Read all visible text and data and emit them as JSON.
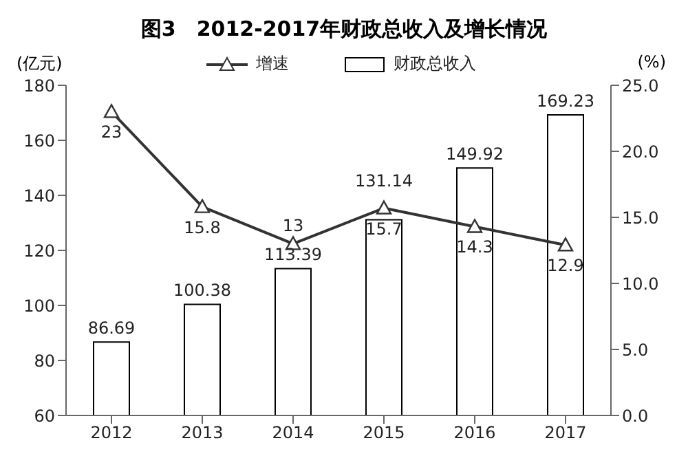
{
  "chart_data": {
    "type": "bar",
    "title": "图3　2012-2017年财政总收入及增长情况",
    "ylabel": "(亿元)",
    "y2label": "(%)",
    "categories": [
      "2012",
      "2013",
      "2014",
      "2015",
      "2016",
      "2017"
    ],
    "series": [
      {
        "name": "财政总收入",
        "color": "#ffffff",
        "values": [
          86.69,
          100.38,
          113.39,
          131.14,
          149.92,
          169.23
        ]
      },
      {
        "name": "增速",
        "type": "line",
        "axis": "y2",
        "color": "#333333",
        "values": [
          23,
          15.8,
          13,
          15.7,
          14.3,
          12.9
        ]
      }
    ],
    "ylim": [
      60,
      180
    ],
    "yticks": [
      60,
      80,
      100,
      120,
      140,
      160,
      180
    ],
    "y2lim": [
      0,
      25
    ],
    "y2ticks": [
      {
        "value": 0,
        "label": "0.0"
      },
      {
        "value": 5,
        "label": "5.0"
      },
      {
        "value": 10,
        "label": "10.0"
      },
      {
        "value": 15,
        "label": "15.0"
      },
      {
        "value": 20,
        "label": "20.0"
      },
      {
        "value": 25,
        "label": "25.0"
      }
    ],
    "data_labels": true,
    "legend": "top",
    "marker": "triangle",
    "grid": false
  }
}
